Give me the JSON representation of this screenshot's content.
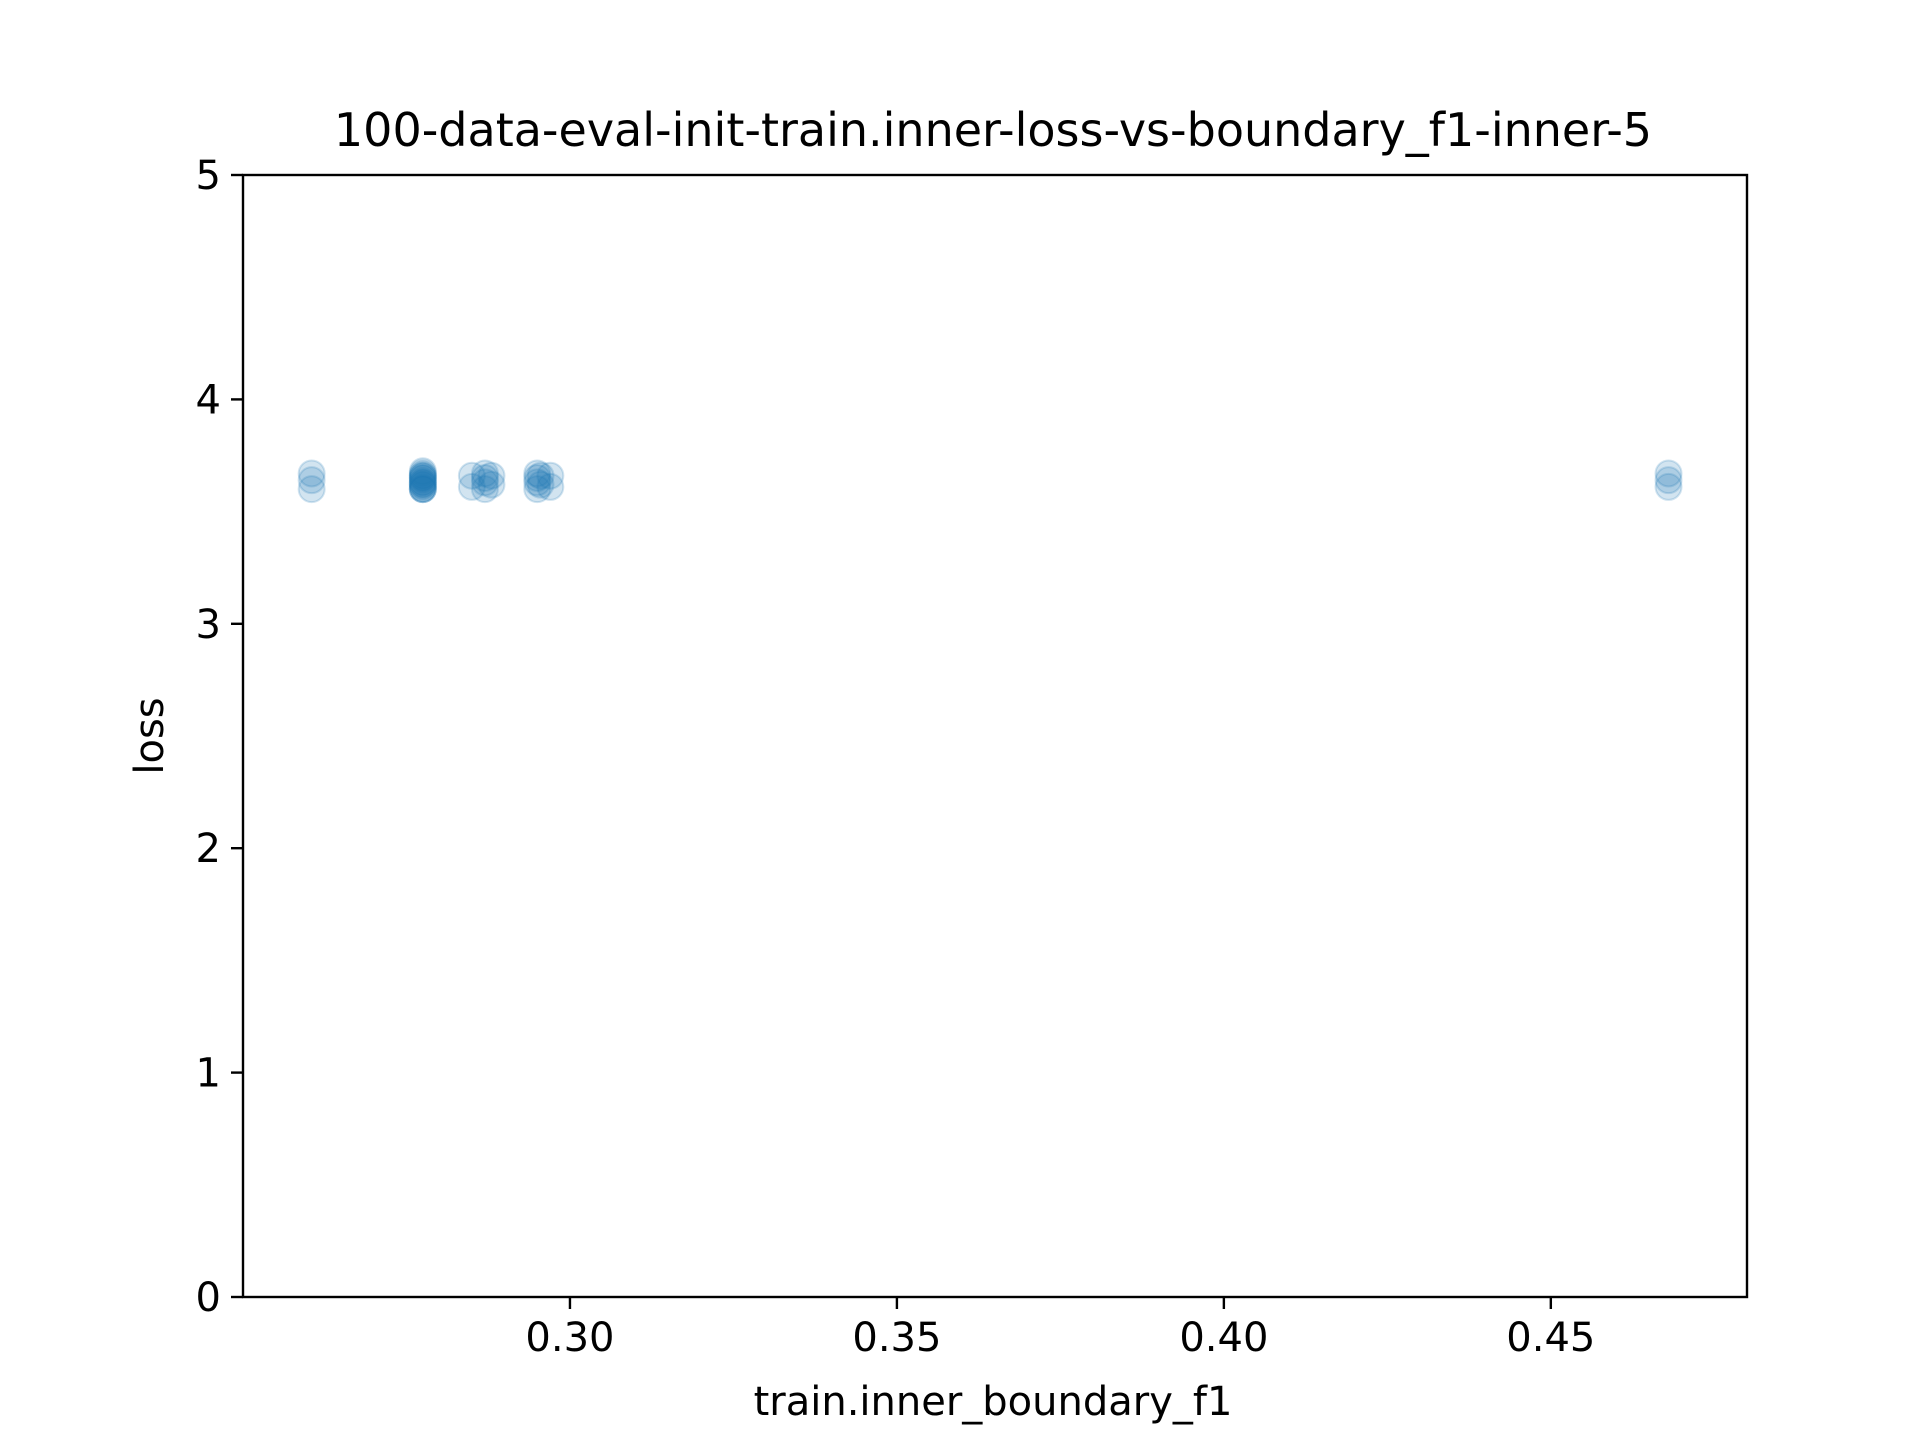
{
  "chart_data": {
    "type": "scatter",
    "title": "100-data-eval-init-train.inner-loss-vs-boundary_f1-inner-5",
    "xlabel": "train.inner_boundary_f1",
    "ylabel": "loss",
    "xlim": [
      0.25,
      0.48
    ],
    "ylim": [
      0,
      5
    ],
    "xticks": [
      0.3,
      0.35,
      0.4,
      0.45
    ],
    "xtick_labels": [
      "0.30",
      "0.35",
      "0.40",
      "0.45"
    ],
    "yticks": [
      0,
      1,
      2,
      3,
      4,
      5
    ],
    "ytick_labels": [
      "0",
      "1",
      "2",
      "3",
      "4",
      "5"
    ],
    "grid": false,
    "legend": "none",
    "marker_color": "#1f77b4",
    "marker_alpha": 0.2,
    "points": [
      {
        "x": 0.2605,
        "y": 3.6
      },
      {
        "x": 0.2605,
        "y": 3.64
      },
      {
        "x": 0.2605,
        "y": 3.67
      },
      {
        "x": 0.2775,
        "y": 3.6
      },
      {
        "x": 0.2775,
        "y": 3.6
      },
      {
        "x": 0.2775,
        "y": 3.61
      },
      {
        "x": 0.2775,
        "y": 3.62
      },
      {
        "x": 0.2775,
        "y": 3.63
      },
      {
        "x": 0.2775,
        "y": 3.64
      },
      {
        "x": 0.2775,
        "y": 3.65
      },
      {
        "x": 0.2775,
        "y": 3.66
      },
      {
        "x": 0.2775,
        "y": 3.67
      },
      {
        "x": 0.2775,
        "y": 3.68
      },
      {
        "x": 0.2775,
        "y": 3.62
      },
      {
        "x": 0.2775,
        "y": 3.65
      },
      {
        "x": 0.2775,
        "y": 3.6
      },
      {
        "x": 0.2775,
        "y": 3.63
      },
      {
        "x": 0.2775,
        "y": 3.66
      },
      {
        "x": 0.285,
        "y": 3.61
      },
      {
        "x": 0.285,
        "y": 3.66
      },
      {
        "x": 0.287,
        "y": 3.6
      },
      {
        "x": 0.287,
        "y": 3.63
      },
      {
        "x": 0.287,
        "y": 3.65
      },
      {
        "x": 0.287,
        "y": 3.67
      },
      {
        "x": 0.288,
        "y": 3.62
      },
      {
        "x": 0.288,
        "y": 3.66
      },
      {
        "x": 0.295,
        "y": 3.6
      },
      {
        "x": 0.295,
        "y": 3.63
      },
      {
        "x": 0.295,
        "y": 3.65
      },
      {
        "x": 0.295,
        "y": 3.67
      },
      {
        "x": 0.2955,
        "y": 3.62
      },
      {
        "x": 0.2955,
        "y": 3.66
      },
      {
        "x": 0.297,
        "y": 3.61
      },
      {
        "x": 0.297,
        "y": 3.66
      },
      {
        "x": 0.468,
        "y": 3.61
      },
      {
        "x": 0.468,
        "y": 3.64
      },
      {
        "x": 0.468,
        "y": 3.67
      }
    ]
  }
}
